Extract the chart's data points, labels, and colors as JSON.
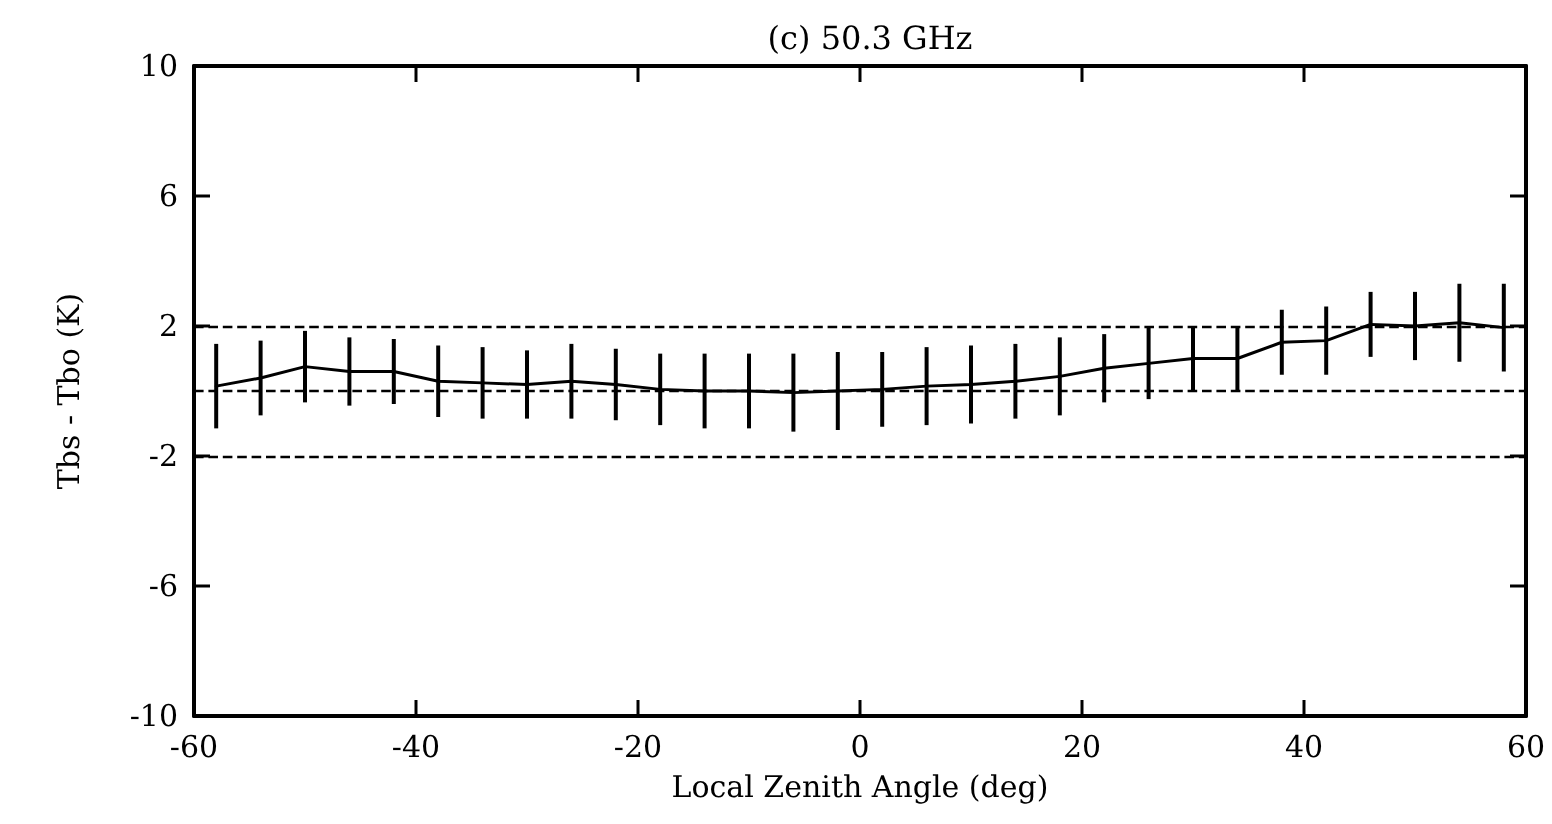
{
  "chart_data": {
    "type": "line",
    "title": "(c) 50.3 GHz",
    "xlabel": "Local Zenith Angle (deg)",
    "ylabel": "Tbs - Tbo (K)",
    "x": [
      -58,
      -54,
      -50,
      -46,
      -42,
      -38,
      -34,
      -30,
      -26,
      -22,
      -18,
      -14,
      -10,
      -6,
      -2,
      2,
      6,
      10,
      14,
      18,
      22,
      26,
      30,
      34,
      38,
      42,
      46,
      50,
      54,
      58
    ],
    "series": [
      {
        "color": "#000000",
        "values": [
          0.15,
          0.4,
          0.75,
          0.6,
          0.6,
          0.3,
          0.25,
          0.2,
          0.3,
          0.2,
          0.05,
          0,
          0,
          -0.05,
          0,
          0.05,
          0.15,
          0.2,
          0.3,
          0.45,
          0.7,
          0.85,
          1.0,
          1.0,
          1.5,
          1.55,
          2.05,
          2.0,
          2.1,
          1.95
        ],
        "errors": [
          1.3,
          1.15,
          1.1,
          1.05,
          1.0,
          1.1,
          1.1,
          1.05,
          1.15,
          1.1,
          1.1,
          1.15,
          1.15,
          1.2,
          1.2,
          1.15,
          1.2,
          1.2,
          1.15,
          1.2,
          1.05,
          1.1,
          1.0,
          1.0,
          1.0,
          1.05,
          1.0,
          1.05,
          1.2,
          1.35
        ]
      }
    ],
    "xlim": [
      -60,
      60
    ],
    "xticks": [
      -60,
      -40,
      -20,
      0,
      20,
      40,
      60
    ],
    "ylim": [
      -10,
      10
    ],
    "yticks": [
      -10,
      -6,
      -2,
      2,
      6,
      10
    ],
    "ref_lines": [
      {
        "axis": "y",
        "value": 2,
        "line_style": "dashed"
      },
      {
        "axis": "y",
        "value": 0,
        "line_style": "dashed"
      },
      {
        "axis": "y",
        "value": -2,
        "line_style": "dashed"
      }
    ],
    "grid": false,
    "marker": "none",
    "line_style": "solid"
  }
}
